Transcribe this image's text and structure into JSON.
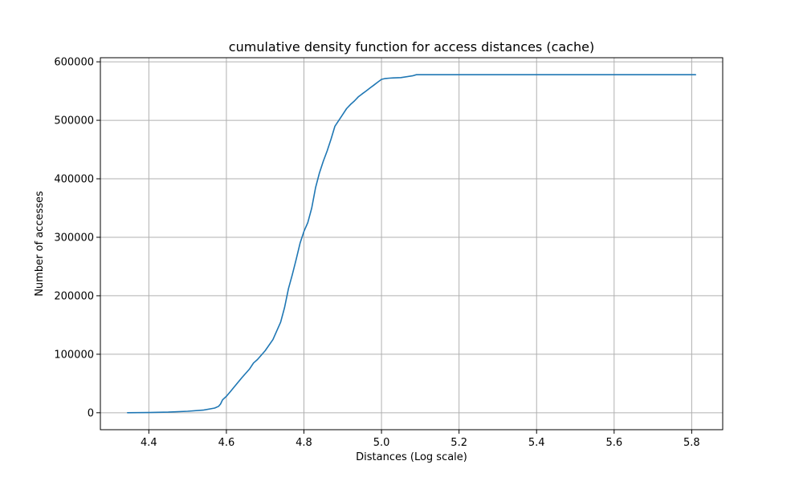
{
  "chart_data": {
    "type": "line",
    "title": "cumulative density function for access distances (cache)",
    "xlabel": "Distances (Log scale)",
    "ylabel": "Number of accesses",
    "xlim": [
      4.275,
      5.88
    ],
    "ylim": [
      -29000,
      607000
    ],
    "x_ticks": [
      4.4,
      4.6,
      4.8,
      5.0,
      5.2,
      5.4,
      5.6,
      5.8
    ],
    "x_tick_labels": [
      "4.4",
      "4.6",
      "4.8",
      "5.0",
      "5.2",
      "5.4",
      "5.6",
      "5.8"
    ],
    "y_ticks": [
      0,
      100000,
      200000,
      300000,
      400000,
      500000,
      600000
    ],
    "y_tick_labels": [
      "0",
      "100000",
      "200000",
      "300000",
      "400000",
      "500000",
      "600000"
    ],
    "grid": true,
    "colors": {
      "line": "#1f77b4",
      "grid": "#b0b0b0"
    },
    "series": [
      {
        "x": [
          4.345,
          4.4,
          4.45,
          4.5,
          4.54,
          4.57,
          4.58,
          4.585,
          4.59,
          4.6,
          4.61,
          4.62,
          4.64,
          4.66,
          4.67,
          4.68,
          4.7,
          4.72,
          4.73,
          4.74,
          4.75,
          4.76,
          4.77,
          4.78,
          4.79,
          4.8,
          4.81,
          4.82,
          4.83,
          4.84,
          4.85,
          4.86,
          4.87,
          4.88,
          4.89,
          4.9,
          4.91,
          4.92,
          4.93,
          4.94,
          4.95,
          4.96,
          4.97,
          4.98,
          4.99,
          5.0,
          5.01,
          5.02,
          5.03,
          5.05,
          5.08,
          5.09,
          5.1,
          5.2,
          5.4,
          5.6,
          5.81
        ],
        "y": [
          0,
          300,
          1000,
          2500,
          4500,
          8000,
          11000,
          15000,
          22000,
          28000,
          36000,
          44000,
          60000,
          75000,
          85000,
          91000,
          106000,
          125000,
          140000,
          155000,
          180000,
          212000,
          236000,
          262000,
          290000,
          310000,
          325000,
          350000,
          385000,
          410000,
          430000,
          448000,
          468000,
          490000,
          500000,
          510000,
          520000,
          527000,
          533000,
          540000,
          545000,
          550000,
          555000,
          560000,
          565000,
          570000,
          571500,
          572000,
          572500,
          573000,
          576000,
          578000,
          578000,
          578000,
          578000,
          578000,
          578000
        ]
      }
    ]
  }
}
